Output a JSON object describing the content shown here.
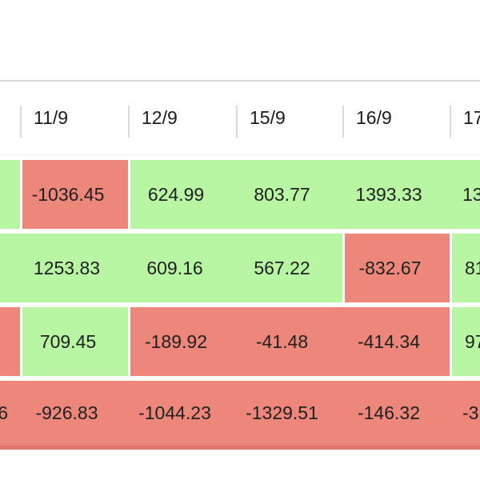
{
  "palette": {
    "positive_bg": "#b9f6a4",
    "negative_bg": "#ee877b",
    "bottom_edge": "#e1766c"
  },
  "header": {
    "columns": [
      {
        "label": ""
      },
      {
        "label": "11/9"
      },
      {
        "label": "12/9"
      },
      {
        "label": "15/9"
      },
      {
        "label": "16/9"
      },
      {
        "label": "17"
      }
    ]
  },
  "table": {
    "rows": [
      {
        "cells": [
          {
            "value": "",
            "color": "green"
          },
          {
            "value": "-1036.45",
            "color": "red"
          },
          {
            "value": "624.99",
            "color": "green"
          },
          {
            "value": "803.77",
            "color": "green"
          },
          {
            "value": "1393.33",
            "color": "green"
          },
          {
            "value": "13",
            "color": "green"
          }
        ]
      },
      {
        "cells": [
          {
            "value": "",
            "color": "green"
          },
          {
            "value": "1253.83",
            "color": "green"
          },
          {
            "value": "609.16",
            "color": "green"
          },
          {
            "value": "567.22",
            "color": "green"
          },
          {
            "value": "-832.67",
            "color": "red"
          },
          {
            "value": "81",
            "color": "green"
          }
        ]
      },
      {
        "cells": [
          {
            "value": "",
            "color": "red"
          },
          {
            "value": "709.45",
            "color": "green"
          },
          {
            "value": "-189.92",
            "color": "red"
          },
          {
            "value": "-41.48",
            "color": "red"
          },
          {
            "value": "-414.34",
            "color": "red"
          },
          {
            "value": "97",
            "color": "green"
          }
        ]
      },
      {
        "cells": [
          {
            "value": "6",
            "color": "red"
          },
          {
            "value": "-926.83",
            "color": "red"
          },
          {
            "value": "-1044.23",
            "color": "red"
          },
          {
            "value": "-1329.51",
            "color": "red"
          },
          {
            "value": "-146.32",
            "color": "red"
          },
          {
            "value": "-3",
            "color": "red"
          }
        ]
      }
    ]
  }
}
